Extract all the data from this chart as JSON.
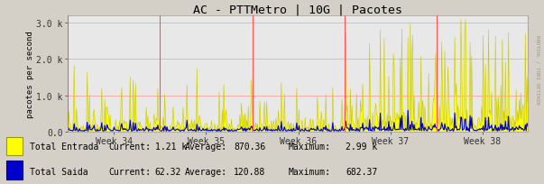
{
  "title": "AC - PTTMetro | 10G | Pacotes",
  "ylabel": "pacotes per second",
  "bg_color": "#d4d0c8",
  "plot_bg_color": "#e8e8e8",
  "grid_color": "#ffaaaa",
  "week_labels": [
    "Week 34",
    "Week 35",
    "Week 36",
    "Week 37",
    "Week 38"
  ],
  "ylim": [
    0,
    3200
  ],
  "yticks": [
    0,
    1000,
    2000,
    3000
  ],
  "ytick_labels": [
    "0.0",
    "1.0 k",
    "2.0 k",
    "3.0 k"
  ],
  "entrada_color": "#ffff00",
  "entrada_edge_color": "#c8c800",
  "saida_color": "#0000cc",
  "vline_color": "#ff5555",
  "legend": {
    "entrada_label": "Total Entrada",
    "saida_label": "Total Saida",
    "entrada_current": "1.21 k",
    "entrada_average": "870.36",
    "entrada_maximum": "2.99 k",
    "saida_current": "62.32",
    "saida_average": "120.88",
    "saida_maximum": "682.37"
  },
  "watermark": "RRDTOOL / TOBI OETIKER",
  "n_points": 600,
  "vline_positions": [
    0,
    120,
    240,
    360,
    480,
    599
  ]
}
